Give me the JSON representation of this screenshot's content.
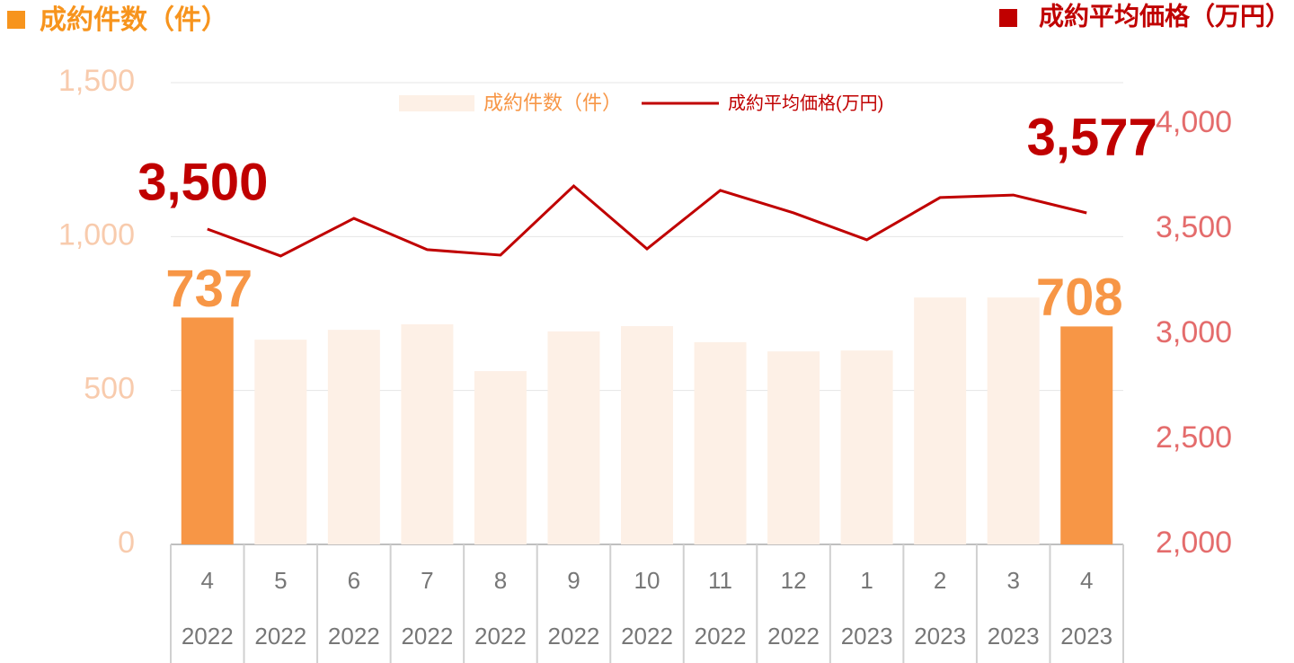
{
  "chart_data": {
    "type": "bar-line",
    "left_heading": "成約件数（件）",
    "right_heading": "成約平均価格（万円）",
    "categories": [
      "4",
      "5",
      "6",
      "7",
      "8",
      "9",
      "10",
      "11",
      "12",
      "1",
      "2",
      "3",
      "4"
    ],
    "category_years": [
      "2022",
      "2022",
      "2022",
      "2022",
      "2022",
      "2022",
      "2022",
      "2022",
      "2022",
      "2023",
      "2023",
      "2023",
      "2023"
    ],
    "series": [
      {
        "name": "成約件数（件）",
        "type": "bar",
        "color": "#fdf0e6",
        "highlight_color": "#f79646",
        "label_color": "#f79646",
        "values": [
          737,
          665,
          697,
          715,
          563,
          692,
          709,
          657,
          627,
          630,
          802,
          802,
          708
        ],
        "value_labels": [
          "737",
          null,
          null,
          null,
          null,
          null,
          null,
          null,
          null,
          null,
          null,
          null,
          "708"
        ]
      },
      {
        "name": "成約平均価格(万円)",
        "type": "line",
        "axis": "y2",
        "color": "#c00000",
        "label_color": "#c00000",
        "values": [
          3500,
          3372,
          3551,
          3402,
          3376,
          3705,
          3406,
          3684,
          3577,
          3449,
          3650,
          3662,
          3577
        ],
        "value_labels": [
          "3,500",
          null,
          null,
          null,
          null,
          null,
          null,
          null,
          null,
          null,
          null,
          null,
          "3,577"
        ]
      }
    ],
    "ylim": [
      0,
      1500
    ],
    "yticks": [
      0,
      500,
      {
        "value": 1000,
        "label": "1,000"
      },
      {
        "value": 1500,
        "label": "1,500"
      }
    ],
    "y2lim": [
      2000,
      4000
    ],
    "y2ticks": [
      {
        "value": 2000,
        "label": "2,000"
      },
      {
        "value": 2500,
        "label": "2,500"
      },
      {
        "value": 3000,
        "label": "3,000"
      },
      {
        "value": 3500,
        "label": "3,500"
      },
      {
        "value": 4000,
        "label": "4,000"
      }
    ],
    "grid": true
  }
}
